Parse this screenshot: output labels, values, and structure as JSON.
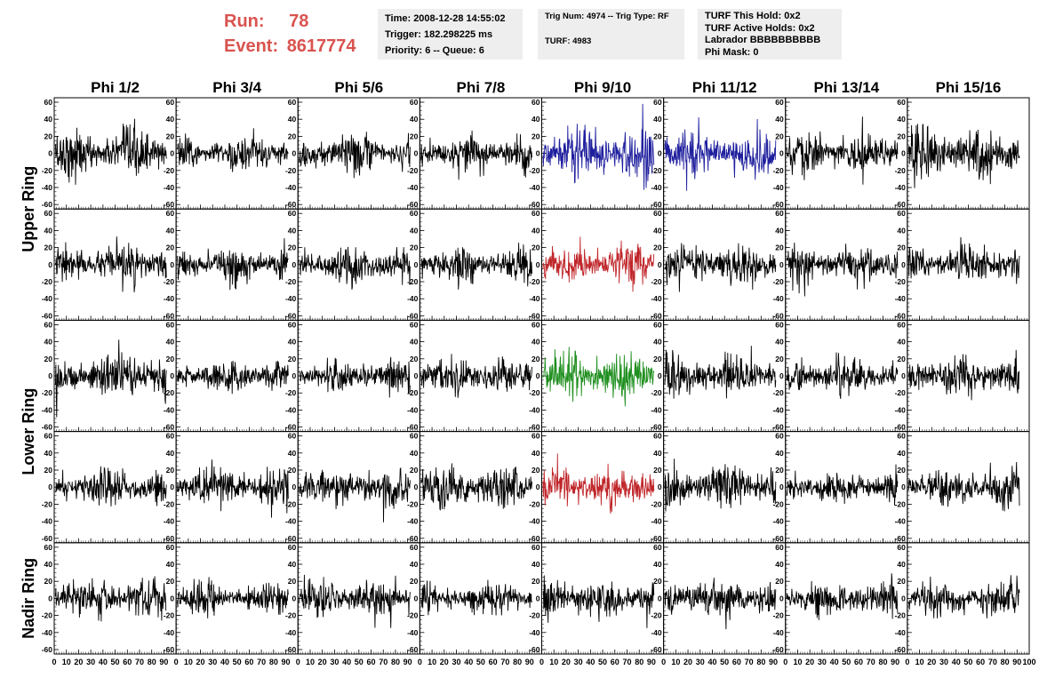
{
  "header": {
    "run_label": "Run:",
    "run_value": "78",
    "event_label": "Event:",
    "event_value": "8617774",
    "time_line": "Time: 2008-12-28 14:55:02",
    "trigger_line": "Trigger: 182.298225 ms",
    "priority_line": "Priority: 6 -- Queue: 6",
    "trig_line": "Trig Num: 4974 -- Trig Type: RF",
    "turf_line": "TURF: 4983",
    "turf_hold_line": "TURF This Hold: 0x2",
    "turf_active_line": "TURF Active Holds: 0x2",
    "labrador_line": "Labrador BBBBBBBBBB",
    "phimask_line": "Phi Mask: 0"
  },
  "colors": {
    "header_red": "#d9534f",
    "trace_default": "#000000",
    "trace_blue": "#1f1f9e",
    "trace_red": "#c0262a",
    "trace_green": "#1f8f1f"
  },
  "chart_data": {
    "type": "line",
    "columns": [
      "Phi 1/2",
      "Phi 3/4",
      "Phi 5/6",
      "Phi 7/8",
      "Phi 9/10",
      "Phi 11/12",
      "Phi 13/14",
      "Phi 15/16"
    ],
    "rows": [
      "Upper Ring",
      "Upper Ring",
      "Lower Ring",
      "Lower Ring",
      "Nadir Ring"
    ],
    "row_labels": [
      {
        "label": "Upper Ring",
        "rows": [
          0,
          1
        ]
      },
      {
        "label": "Lower Ring",
        "rows": [
          2,
          3
        ]
      },
      {
        "label": "Nadir Ring",
        "rows": [
          4
        ]
      }
    ],
    "xlim": [
      0,
      100
    ],
    "ylim": [
      -60,
      60
    ],
    "x_ticks": [
      0,
      10,
      20,
      30,
      40,
      50,
      60,
      70,
      80,
      90,
      100
    ],
    "y_ticks": [
      -60,
      -40,
      -20,
      0,
      20,
      40,
      60
    ],
    "samples": 260,
    "x_end": 92,
    "amplitudes": [
      [
        22,
        16,
        18,
        17,
        26,
        20,
        19,
        24
      ],
      [
        17,
        16,
        18,
        17,
        18,
        18,
        17,
        19
      ],
      [
        21,
        14,
        16,
        18,
        22,
        19,
        16,
        17
      ],
      [
        17,
        19,
        18,
        20,
        18,
        20,
        16,
        19
      ],
      [
        19,
        14,
        17,
        15,
        19,
        18,
        16,
        18
      ]
    ],
    "highlight": [
      {
        "row": 0,
        "col": 4,
        "color": "#1f1f9e"
      },
      {
        "row": 0,
        "col": 5,
        "color": "#1f1f9e"
      },
      {
        "row": 1,
        "col": 4,
        "color": "#c0262a"
      },
      {
        "row": 2,
        "col": 4,
        "color": "#1f8f1f"
      },
      {
        "row": 3,
        "col": 4,
        "color": "#c0262a"
      }
    ]
  }
}
